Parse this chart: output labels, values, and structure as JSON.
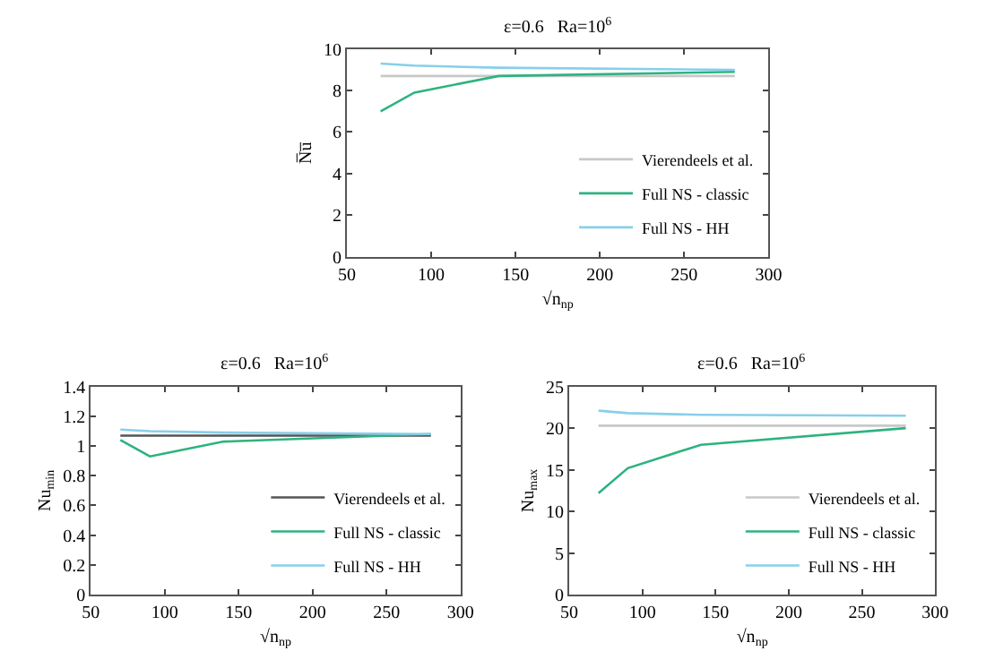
{
  "chart_data": [
    {
      "type": "line",
      "title": "ε=0.6   Ra=10$^{6}$",
      "xlabel": "√n$_{np}$",
      "ylabel": "N̅u̅",
      "xlim": [
        50,
        300
      ],
      "xticks": [
        50,
        100,
        150,
        200,
        250,
        300
      ],
      "ylim": [
        0,
        10
      ],
      "yticks": [
        0,
        2,
        4,
        6,
        8,
        10
      ],
      "legend": "bottom right",
      "marker": "none",
      "line_style": "solid",
      "series": [
        {
          "name": "Vierendeels et al.",
          "color": "#c8c8c8",
          "x": [
            70,
            280
          ],
          "values": [
            8.7,
            8.7
          ]
        },
        {
          "name": "Full NS - classic",
          "color": "#2db37f",
          "x": [
            70,
            90,
            140,
            280
          ],
          "values": [
            7.0,
            7.9,
            8.7,
            8.9
          ]
        },
        {
          "name": "Full NS - HH",
          "color": "#87cfea",
          "x": [
            70,
            90,
            140,
            280
          ],
          "values": [
            9.3,
            9.2,
            9.1,
            9.0
          ]
        }
      ]
    },
    {
      "type": "line",
      "title": "ε=0.6   Ra=10$^{6}$",
      "xlabel": "√n$_{np}$",
      "ylabel": "Nu$_{min}$",
      "xlim": [
        50,
        300
      ],
      "xticks": [
        50,
        100,
        150,
        200,
        250,
        300
      ],
      "ylim": [
        0,
        1.4
      ],
      "yticks": [
        0,
        0.2,
        0.4,
        0.6,
        0.8,
        1,
        1.2,
        1.4
      ],
      "legend": "bottom right",
      "marker": "none",
      "line_style": "solid",
      "series": [
        {
          "name": "Vierendeels et al.",
          "color": "#555555",
          "x": [
            70,
            280
          ],
          "values": [
            1.07,
            1.07
          ]
        },
        {
          "name": "Full NS - classic",
          "color": "#2db37f",
          "x": [
            70,
            90,
            140,
            280
          ],
          "values": [
            1.04,
            0.93,
            1.03,
            1.08
          ]
        },
        {
          "name": "Full NS - HH",
          "color": "#87cfea",
          "x": [
            70,
            90,
            140,
            280
          ],
          "values": [
            1.11,
            1.1,
            1.09,
            1.08
          ]
        }
      ]
    },
    {
      "type": "line",
      "title": "ε=0.6   Ra=10$^{6}$",
      "xlabel": "√n$_{np}$",
      "ylabel": "Nu$_{max}$",
      "xlim": [
        50,
        300
      ],
      "xticks": [
        50,
        100,
        150,
        200,
        250,
        300
      ],
      "ylim": [
        0,
        25
      ],
      "yticks": [
        0,
        5,
        10,
        15,
        20,
        25
      ],
      "legend": "bottom right",
      "marker": "none",
      "line_style": "solid",
      "series": [
        {
          "name": "Vierendeels et al.",
          "color": "#c8c8c8",
          "x": [
            70,
            280
          ],
          "values": [
            20.3,
            20.3
          ]
        },
        {
          "name": "Full NS - classic",
          "color": "#2db37f",
          "x": [
            70,
            90,
            140,
            280
          ],
          "values": [
            12.2,
            15.2,
            18.0,
            20.0
          ]
        },
        {
          "name": "Full NS - HH",
          "color": "#87cfea",
          "x": [
            70,
            90,
            140,
            280
          ],
          "values": [
            22.1,
            21.8,
            21.6,
            21.5
          ]
        }
      ]
    }
  ]
}
